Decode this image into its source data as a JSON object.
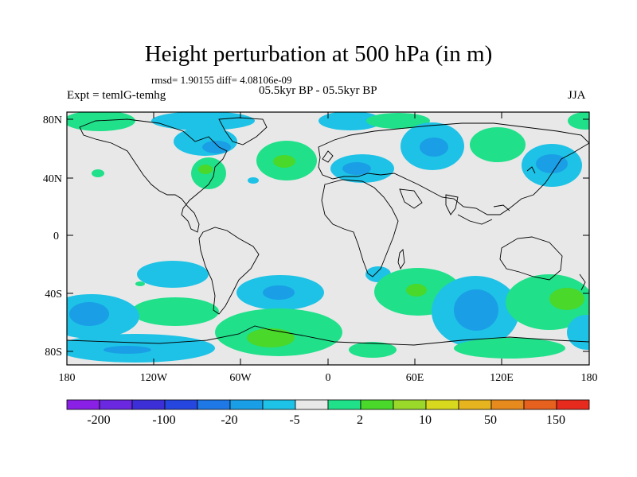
{
  "title": "Height perturbation at 500 hPa (in m)",
  "stats": "rmsd= 1.90155 diff= 4.08106e-09",
  "left_label": "Expt = temlG-temhg",
  "center_label": "05.5kyr BP - 05.5kyr BP",
  "right_label": "JJA",
  "lat_ticks": [
    "80N",
    "40N",
    "0",
    "40S",
    "80S"
  ],
  "lon_ticks": [
    "180",
    "120W",
    "60W",
    "0",
    "60E",
    "120E",
    "180"
  ],
  "colorbar": {
    "colors": [
      "#8a1fe6",
      "#6a28e0",
      "#3c2fd8",
      "#2646e0",
      "#1e78e6",
      "#1a9ee6",
      "#1ec2e6",
      "#e8e8e8",
      "#20e08a",
      "#4ad82a",
      "#9ad82a",
      "#d8d81e",
      "#e6b41e",
      "#e68a1e",
      "#e6601e",
      "#e62a1e"
    ],
    "labels": [
      "-200",
      "-100",
      "-20",
      "-5",
      "2",
      "10",
      "50",
      "150"
    ]
  }
}
